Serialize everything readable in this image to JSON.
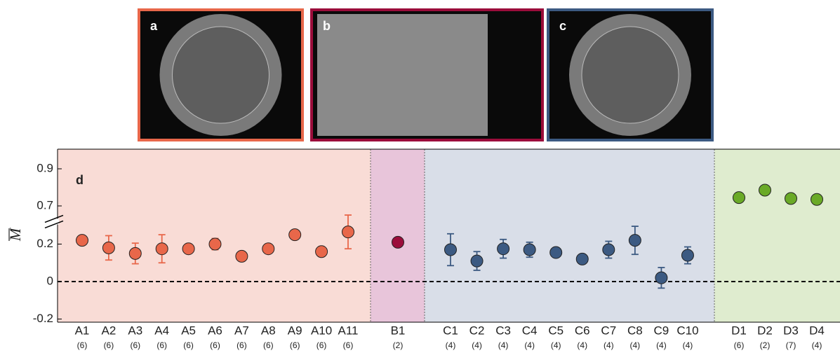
{
  "panels": [
    {
      "label": "a",
      "color": "#e8674a"
    },
    {
      "label": "b",
      "color": "#9b0d3b"
    },
    {
      "label": "c",
      "color": "#3c5a82"
    }
  ],
  "chart_data": {
    "type": "dot-errorbar",
    "panel_label": "d",
    "y_label": "M",
    "ylim": [
      -0.2,
      1.0
    ],
    "yticks": [
      -0.2,
      0,
      0.2,
      0.7,
      0.9
    ],
    "ybreak": [
      0.32,
      0.62
    ],
    "reference_line": 0,
    "series": [
      {
        "color": "#e8674a",
        "band_color": "#f9dcd6",
        "categories": [
          "A1",
          "A2",
          "A3",
          "A4",
          "A5",
          "A6",
          "A7",
          "A8",
          "A9",
          "A10",
          "A11"
        ],
        "counts": [
          "(6)",
          "(6)",
          "(6)",
          "(6)",
          "(6)",
          "(6)",
          "(6)",
          "(6)",
          "(6)",
          "(6)",
          "(6)"
        ],
        "values": [
          0.22,
          0.18,
          0.15,
          0.175,
          0.175,
          0.2,
          0.135,
          0.175,
          0.25,
          0.16,
          0.265
        ],
        "errors": [
          0.01,
          0.065,
          0.055,
          0.075,
          0.015,
          0.03,
          0,
          0,
          0,
          0,
          0.09
        ]
      },
      {
        "color": "#9b0d3b",
        "band_color": "#e8c5da",
        "categories": [
          "B1"
        ],
        "counts": [
          "(2)"
        ],
        "values": [
          0.21
        ],
        "errors": [
          0
        ]
      },
      {
        "color": "#3c5a82",
        "band_color": "#d9dee8",
        "categories": [
          "C1",
          "C2",
          "C3",
          "C4",
          "C5",
          "C6",
          "C7",
          "C8",
          "C9",
          "C10"
        ],
        "counts": [
          "(4)",
          "(4)",
          "(4)",
          "(4)",
          "(4)",
          "(4)",
          "(4)",
          "(4)",
          "(4)",
          "(4)"
        ],
        "values": [
          0.17,
          0.11,
          0.175,
          0.17,
          0.155,
          0.12,
          0.17,
          0.22,
          0.02,
          0.14
        ],
        "errors": [
          0.085,
          0.05,
          0.05,
          0.04,
          0.025,
          0,
          0.045,
          0.075,
          0.055,
          0.045
        ]
      },
      {
        "color": "#6aaa27",
        "band_color": "#dfeccf",
        "categories": [
          "D1",
          "D2",
          "D3",
          "D4"
        ],
        "counts": [
          "(6)",
          "(2)",
          "(7)",
          "(4)"
        ],
        "values": [
          0.745,
          0.785,
          0.74,
          0.735
        ],
        "errors": [
          0,
          0,
          0,
          0
        ]
      }
    ]
  }
}
